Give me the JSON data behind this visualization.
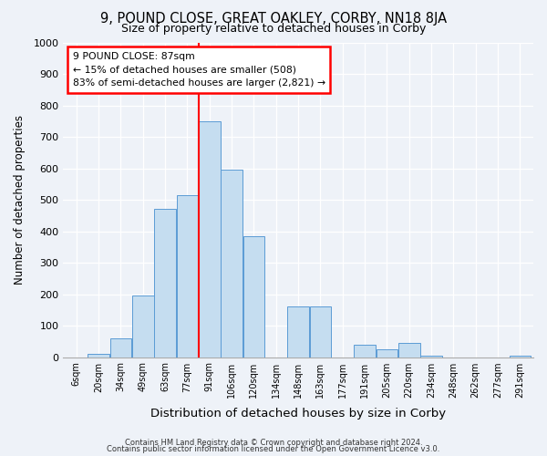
{
  "title": "9, POUND CLOSE, GREAT OAKLEY, CORBY, NN18 8JA",
  "subtitle": "Size of property relative to detached houses in Corby",
  "xlabel": "Distribution of detached houses by size in Corby",
  "ylabel": "Number of detached properties",
  "bar_labels": [
    "6sqm",
    "20sqm",
    "34sqm",
    "49sqm",
    "63sqm",
    "77sqm",
    "91sqm",
    "106sqm",
    "120sqm",
    "134sqm",
    "148sqm",
    "163sqm",
    "177sqm",
    "191sqm",
    "205sqm",
    "220sqm",
    "234sqm",
    "248sqm",
    "262sqm",
    "277sqm",
    "291sqm"
  ],
  "bar_values": [
    0,
    10,
    60,
    195,
    470,
    515,
    750,
    595,
    385,
    0,
    160,
    160,
    0,
    40,
    25,
    45,
    5,
    0,
    0,
    0,
    5
  ],
  "bar_color": "#c5ddf0",
  "bar_edge_color": "#5b9bd5",
  "vline_color": "red",
  "annotation_title": "9 POUND CLOSE: 87sqm",
  "annotation_line1": "← 15% of detached houses are smaller (508)",
  "annotation_line2": "83% of semi-detached houses are larger (2,821) →",
  "annotation_box_color": "white",
  "annotation_box_edge_color": "red",
  "ylim": [
    0,
    1000
  ],
  "yticks": [
    0,
    100,
    200,
    300,
    400,
    500,
    600,
    700,
    800,
    900,
    1000
  ],
  "footer1": "Contains HM Land Registry data © Crown copyright and database right 2024.",
  "footer2": "Contains public sector information licensed under the Open Government Licence v3.0.",
  "bg_color": "#eef2f8"
}
